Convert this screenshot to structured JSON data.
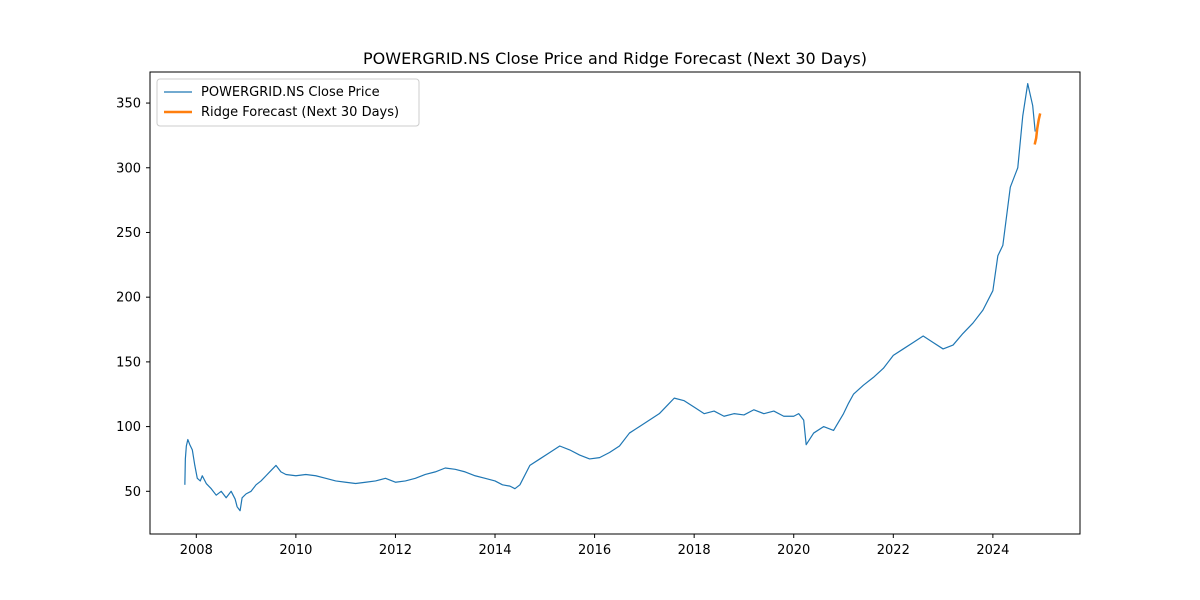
{
  "chart_data": {
    "type": "line",
    "title": "POWERGRID.NS Close Price and Ridge Forecast (Next 30 Days)",
    "xlabel": "",
    "ylabel": "",
    "xlim": [
      2007.07,
      2025.75
    ],
    "ylim": [
      17,
      374
    ],
    "x_ticks": [
      2008,
      2010,
      2012,
      2014,
      2016,
      2018,
      2020,
      2022,
      2024
    ],
    "x_tick_labels": [
      "2008",
      "2010",
      "2012",
      "2014",
      "2016",
      "2018",
      "2020",
      "2022",
      "2024"
    ],
    "y_ticks": [
      50,
      100,
      150,
      200,
      250,
      300,
      350
    ],
    "y_tick_labels": [
      "50",
      "100",
      "150",
      "200",
      "250",
      "300",
      "350"
    ],
    "grid": false,
    "legend_position": "upper-left",
    "series": [
      {
        "name": "POWERGRID.NS Close Price",
        "color": "#1f77b4",
        "x": [
          2007.77,
          2007.78,
          2007.8,
          2007.83,
          2007.87,
          2007.92,
          2007.97,
          2008.02,
          2008.08,
          2008.12,
          2008.2,
          2008.3,
          2008.4,
          2008.5,
          2008.6,
          2008.7,
          2008.78,
          2008.82,
          2008.88,
          2008.92,
          2009.0,
          2009.1,
          2009.2,
          2009.3,
          2009.4,
          2009.5,
          2009.6,
          2009.7,
          2009.8,
          2010.0,
          2010.2,
          2010.4,
          2010.6,
          2010.8,
          2011.0,
          2011.2,
          2011.4,
          2011.6,
          2011.8,
          2012.0,
          2012.2,
          2012.4,
          2012.6,
          2012.8,
          2013.0,
          2013.2,
          2013.4,
          2013.6,
          2013.8,
          2014.0,
          2014.15,
          2014.3,
          2014.4,
          2014.5,
          2014.7,
          2014.9,
          2015.1,
          2015.3,
          2015.5,
          2015.7,
          2015.9,
          2016.1,
          2016.3,
          2016.5,
          2016.7,
          2016.9,
          2017.1,
          2017.3,
          2017.5,
          2017.6,
          2017.8,
          2018.0,
          2018.2,
          2018.4,
          2018.6,
          2018.8,
          2019.0,
          2019.2,
          2019.4,
          2019.6,
          2019.8,
          2020.0,
          2020.1,
          2020.2,
          2020.25,
          2020.4,
          2020.6,
          2020.8,
          2021.0,
          2021.1,
          2021.2,
          2021.4,
          2021.6,
          2021.8,
          2022.0,
          2022.2,
          2022.4,
          2022.6,
          2022.8,
          2023.0,
          2023.2,
          2023.4,
          2023.6,
          2023.8,
          2024.0,
          2024.1,
          2024.2,
          2024.3,
          2024.35,
          2024.5,
          2024.6,
          2024.7,
          2024.8,
          2024.85
        ],
        "y": [
          55,
          75,
          85,
          90,
          86,
          82,
          70,
          60,
          58,
          62,
          56,
          52,
          47,
          50,
          45,
          50,
          44,
          38,
          35,
          45,
          48,
          50,
          55,
          58,
          62,
          66,
          70,
          65,
          63,
          62,
          63,
          62,
          60,
          58,
          57,
          56,
          57,
          58,
          60,
          57,
          58,
          60,
          63,
          65,
          68,
          67,
          65,
          62,
          60,
          58,
          55,
          54,
          52,
          55,
          70,
          75,
          80,
          85,
          82,
          78,
          75,
          76,
          80,
          85,
          95,
          100,
          105,
          110,
          118,
          122,
          120,
          115,
          110,
          112,
          108,
          110,
          109,
          113,
          110,
          112,
          108,
          108,
          110,
          105,
          86,
          95,
          100,
          97,
          110,
          118,
          125,
          132,
          138,
          145,
          155,
          160,
          165,
          170,
          165,
          160,
          163,
          172,
          180,
          190,
          205,
          232,
          240,
          270,
          285,
          300,
          340,
          365,
          348,
          328
        ]
      },
      {
        "name": "Ridge Forecast (Next 30 Days)",
        "color": "#ff7f0e",
        "x": [
          2024.84,
          2024.87,
          2024.89,
          2024.92,
          2024.95
        ],
        "y": [
          318,
          323,
          330,
          337,
          342
        ]
      }
    ]
  }
}
